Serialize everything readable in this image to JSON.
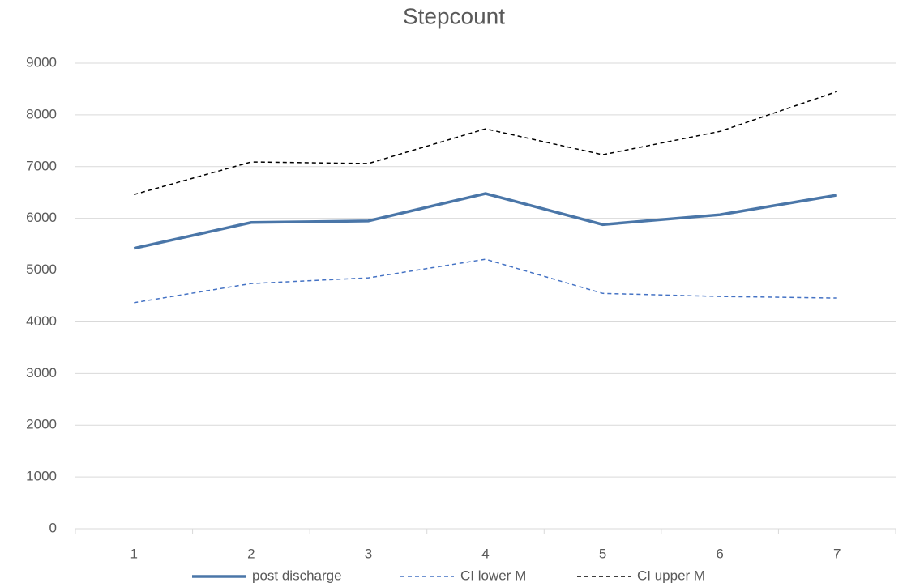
{
  "chart_data": {
    "type": "line",
    "title": "Stepcount",
    "categories": [
      "1",
      "2",
      "3",
      "4",
      "5",
      "6",
      "7"
    ],
    "series": [
      {
        "name": "post discharge",
        "color": "#4a76a8",
        "dash": "solid",
        "values": [
          5420,
          5920,
          5950,
          6480,
          5880,
          6070,
          6450
        ]
      },
      {
        "name": "CI lower M",
        "color": "#4472c4",
        "dash": "dashed",
        "values": [
          4370,
          4740,
          4850,
          5210,
          4550,
          4490,
          4460
        ]
      },
      {
        "name": "CI upper M",
        "color": "#000000",
        "dash": "dashed",
        "values": [
          6460,
          7090,
          7060,
          7730,
          7230,
          7680,
          8450
        ]
      }
    ],
    "ylim": [
      0,
      9000
    ],
    "yticks": [
      0,
      1000,
      2000,
      3000,
      4000,
      5000,
      6000,
      7000,
      8000,
      9000
    ],
    "grid": true,
    "legend": "bottom"
  }
}
